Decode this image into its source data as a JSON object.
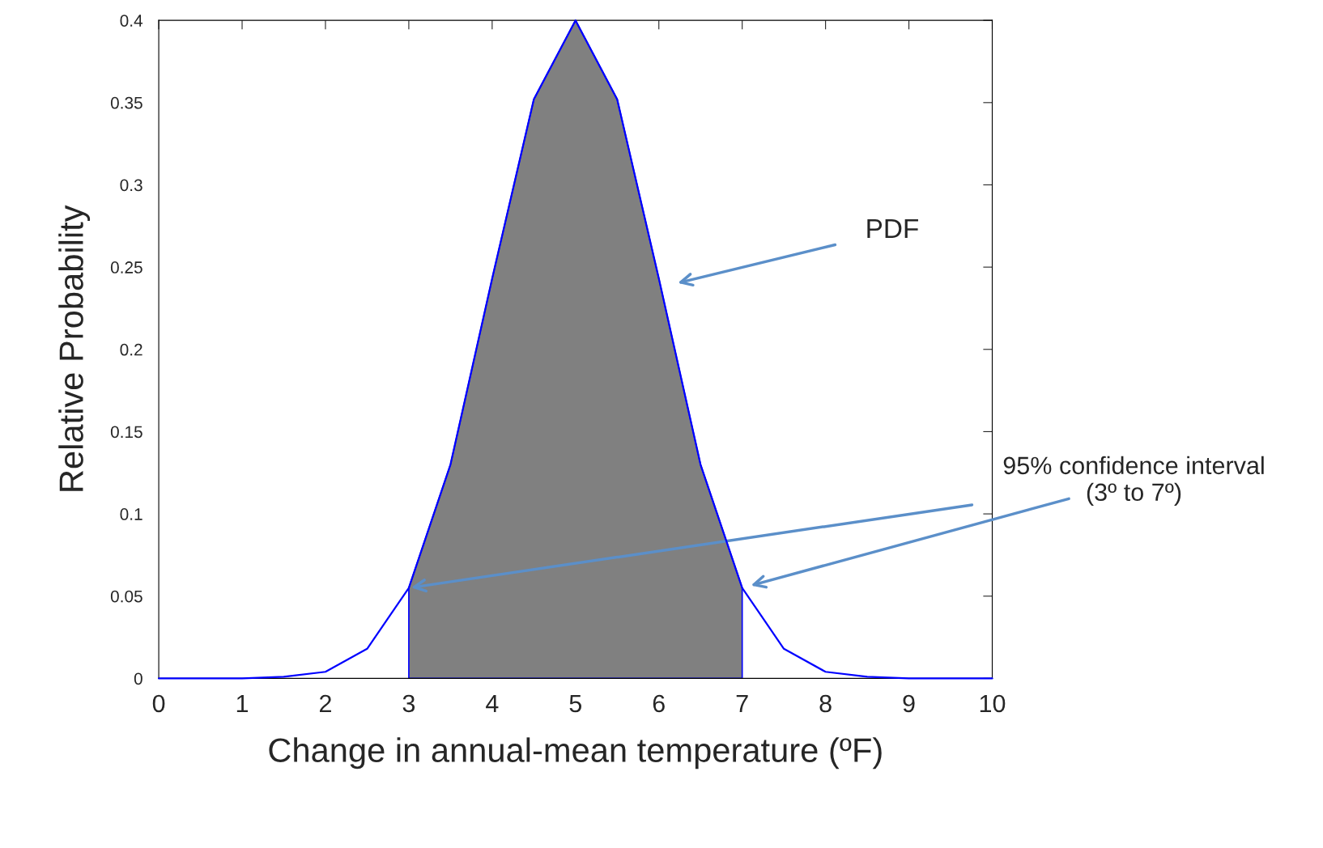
{
  "chart_data": {
    "type": "line",
    "xlabel": "Change in annual-mean temperature (ºF)",
    "ylabel": "Relative Probability",
    "x": [
      0,
      0.5,
      1,
      1.5,
      2,
      2.5,
      3,
      3.5,
      4,
      4.5,
      5,
      5.5,
      6,
      6.5,
      7,
      7.5,
      8,
      8.5,
      9,
      9.5,
      10
    ],
    "series": [
      {
        "color": "#0000ff",
        "values": [
          0,
          0,
          0,
          0.001,
          0.004,
          0.018,
          0.055,
          0.13,
          0.243,
          0.352,
          0.4,
          0.352,
          0.243,
          0.13,
          0.055,
          0.018,
          0.004,
          0.001,
          0,
          0,
          0
        ]
      },
      {
        "type": "area",
        "color": "#808080",
        "x": [
          3,
          3.5,
          4,
          4.5,
          5,
          5.5,
          6,
          6.5,
          7
        ],
        "values": [
          0.055,
          0.13,
          0.243,
          0.352,
          0.4,
          0.352,
          0.243,
          0.13,
          0.055
        ]
      }
    ],
    "xlim": [
      0,
      10
    ],
    "ylim": [
      0,
      0.4
    ],
    "xticks": [
      0,
      1,
      2,
      3,
      4,
      5,
      6,
      7,
      8,
      9,
      10
    ],
    "yticks": [
      0,
      0.05,
      0.1,
      0.15,
      0.2,
      0.25,
      0.3,
      0.35,
      0.4
    ],
    "grid": false,
    "annotations": [
      "PDF",
      {
        "text": "95% confidence interval\n(3º to 7º)",
        "x": 3,
        "y": 0.055
      }
    ]
  }
}
